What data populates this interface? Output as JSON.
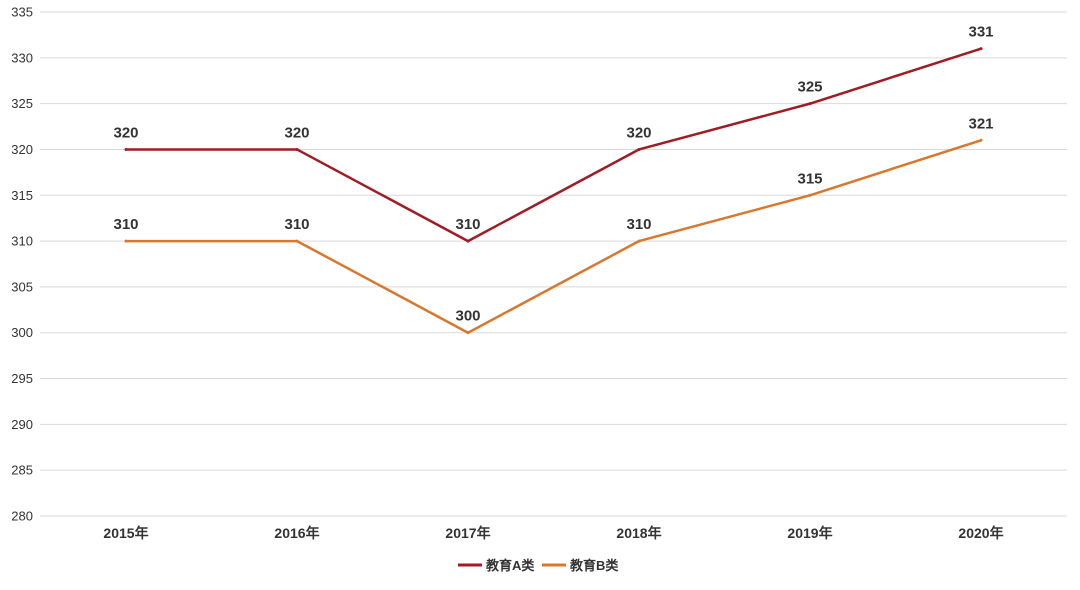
{
  "chart_data": {
    "type": "line",
    "categories": [
      "2015年",
      "2016年",
      "2017年",
      "2018年",
      "2019年",
      "2020年"
    ],
    "series": [
      {
        "name": "教育A类",
        "values": [
          320,
          320,
          310,
          320,
          325,
          331
        ],
        "color": "#a01c24"
      },
      {
        "name": "教育B类",
        "values": [
          310,
          310,
          300,
          310,
          315,
          321
        ],
        "color": "#d8782f"
      }
    ],
    "ylim": [
      280,
      335
    ],
    "yticks": [
      280,
      285,
      290,
      295,
      300,
      305,
      310,
      315,
      320,
      325,
      330,
      335
    ],
    "grid": true,
    "legend": "bottom-center",
    "data_labels": true
  }
}
